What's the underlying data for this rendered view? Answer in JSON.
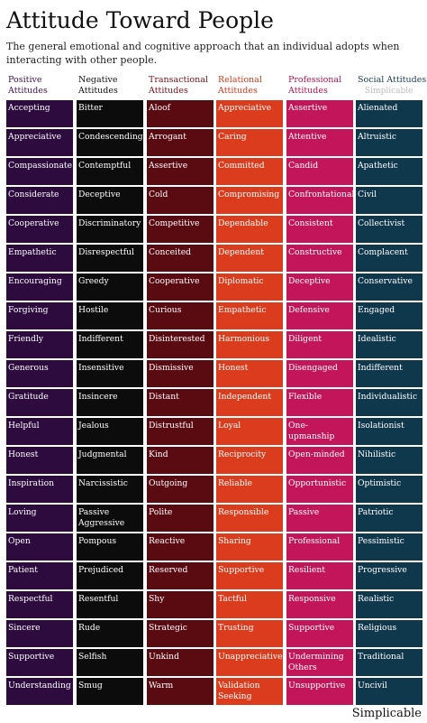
{
  "title": "Attitude Toward People",
  "subtitle": "The general emotional and cognitive approach that an individual adopts when interacting with other people.",
  "columns": [
    {
      "header": "Positive Attitudes",
      "items": [
        "Accepting",
        "Appreciative",
        "Compassionate",
        "Considerate",
        "Cooperative",
        "Empathetic",
        "Encouraging",
        "Forgiving",
        "Friendly",
        "Generous",
        "Gratitude",
        "Helpful",
        "Honest",
        "Inspiration",
        "Loving",
        "Open",
        "Patient",
        "Respectful",
        "Sincere",
        "Supportive",
        "Understanding"
      ]
    },
    {
      "header": "Negative Attitudes",
      "items": [
        "Bitter",
        "Condescending",
        "Contemptful",
        "Deceptive",
        "Discriminatory",
        "Disrespectful",
        "Greedy",
        "Hostile",
        "Indifferent",
        "Insensitive",
        "Insincere",
        "Jealous",
        "Judgmental",
        "Narcissistic",
        "Passive Aggressive",
        "Pompous",
        "Prejudiced",
        "Resentful",
        "Rude",
        "Selfish",
        "Smug"
      ]
    },
    {
      "header": "Transactional Attitudes",
      "items": [
        "Aloof",
        "Arrogant",
        "Assertive",
        "Cold",
        "Competitive",
        "Conceited",
        "Cooperative",
        "Curious",
        "Disinterested",
        "Dismissive",
        "Distant",
        "Distrustful",
        "Kind",
        "Outgoing",
        "Polite",
        "Reactive",
        "Reserved",
        "Shy",
        "Strategic",
        "Unkind",
        "Warm"
      ]
    },
    {
      "header": "Relational Attitudes",
      "items": [
        "Appreciative",
        "Caring",
        "Committed",
        "Compromising",
        "Dependable",
        "Dependent",
        "Diplomatic",
        "Empathetic",
        "Harmonious",
        "Honest",
        "Independent",
        "Loyal",
        "Reciprocity",
        "Reliable",
        "Responsible",
        "Sharing",
        "Supportive",
        "Tactful",
        "Trusting",
        "Unappreciative",
        "Validation Seeking"
      ]
    },
    {
      "header": "Professional Attitudes",
      "items": [
        "Assertive",
        "Attentive",
        "Candid",
        "Confrontational",
        "Consistent",
        "Constructive",
        "Deceptive",
        "Defensive",
        "Diligent",
        "Disengaged",
        "Flexible",
        "One-upmanship",
        "Open-minded",
        "Opportunistic",
        "Passive",
        "Professional",
        "Resilient",
        "Responsive",
        "Supportive",
        "Undermining Others",
        "Unsupportive"
      ]
    },
    {
      "header": "Social Attitudes",
      "items": [
        "Alienated",
        "Altruistic",
        "Apathetic",
        "Civil",
        "Collectivist",
        "Complacent",
        "Conservative",
        "Engaged",
        "Idealistic",
        "Indifferent",
        "Individualistic",
        "Isolationist",
        "Nihilistic",
        "Optimistic",
        "Patriotic",
        "Pessimistic",
        "Progressive",
        "Realistic",
        "Religious",
        "Traditional",
        "Uncivil"
      ]
    }
  ],
  "watermark": "Simplicable",
  "footer": "Simplicable"
}
